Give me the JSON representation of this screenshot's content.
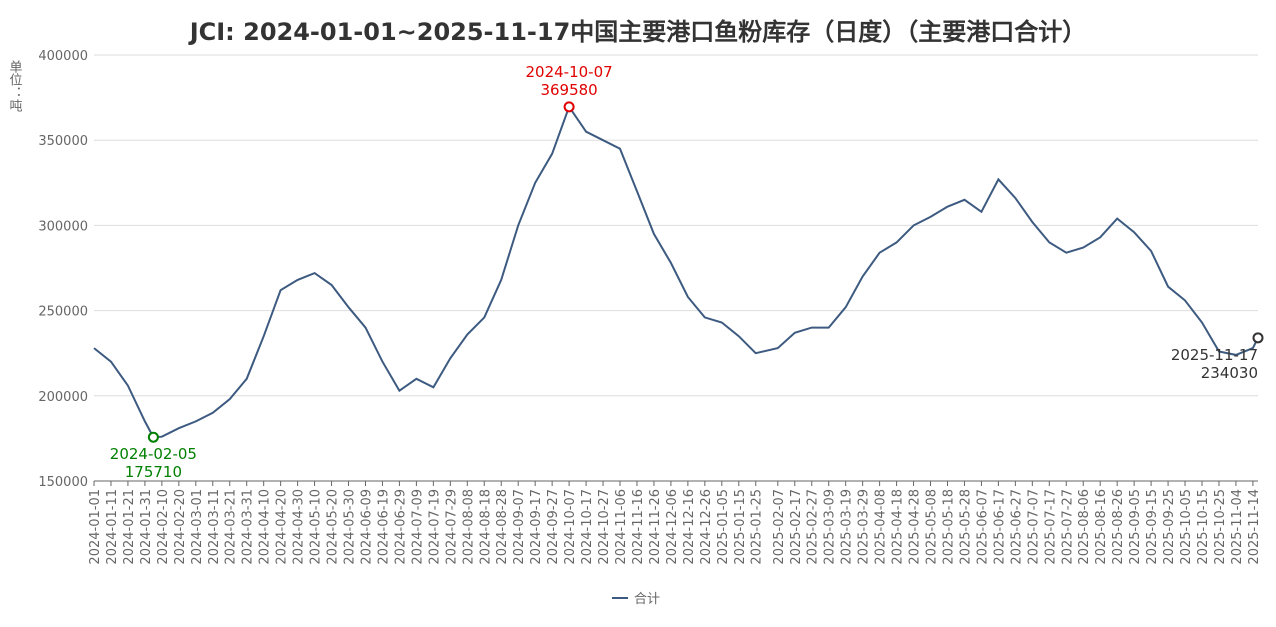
{
  "chart_data": {
    "type": "line",
    "title": "JCI: 2024-01-01~2025-11-17中国主要港口鱼粉库存（日度）（主要港口合计）",
    "y_label": "单位：吨",
    "x": [
      "2024-01-01",
      "2024-01-11",
      "2024-01-21",
      "2024-01-31",
      "2024-02-05",
      "2024-02-10",
      "2024-02-20",
      "2024-03-01",
      "2024-03-11",
      "2024-03-21",
      "2024-03-31",
      "2024-04-10",
      "2024-04-20",
      "2024-04-30",
      "2024-05-10",
      "2024-05-20",
      "2024-05-30",
      "2024-06-09",
      "2024-06-19",
      "2024-06-29",
      "2024-07-09",
      "2024-07-19",
      "2024-07-29",
      "2024-08-08",
      "2024-08-18",
      "2024-08-28",
      "2024-09-07",
      "2024-09-17",
      "2024-09-27",
      "2024-10-07",
      "2024-10-17",
      "2024-10-27",
      "2024-11-06",
      "2024-11-16",
      "2024-11-26",
      "2024-12-06",
      "2024-12-16",
      "2024-12-26",
      "2025-01-05",
      "2025-01-15",
      "2025-01-25",
      "2025-02-07",
      "2025-02-17",
      "2025-02-27",
      "2025-03-09",
      "2025-03-19",
      "2025-03-29",
      "2025-04-08",
      "2025-04-18",
      "2025-04-28",
      "2025-05-08",
      "2025-05-18",
      "2025-05-28",
      "2025-06-07",
      "2025-06-17",
      "2025-06-27",
      "2025-07-07",
      "2025-07-17",
      "2025-07-27",
      "2025-08-06",
      "2025-08-16",
      "2025-08-26",
      "2025-09-05",
      "2025-09-15",
      "2025-09-25",
      "2025-10-05",
      "2025-10-15",
      "2025-10-25",
      "2025-11-04",
      "2025-11-14",
      "2025-11-17"
    ],
    "series": [
      {
        "name": "合计",
        "color": "#3d5a80",
        "values": [
          228000,
          220000,
          206000,
          185000,
          175710,
          176000,
          181000,
          185000,
          190000,
          198000,
          210000,
          235000,
          262000,
          268000,
          272000,
          265000,
          252000,
          240000,
          220000,
          203000,
          210000,
          205000,
          222000,
          236000,
          246000,
          268000,
          300000,
          325000,
          342000,
          369580,
          355000,
          350000,
          345000,
          320000,
          295000,
          278000,
          258000,
          246000,
          243000,
          235000,
          225000,
          228000,
          237000,
          240000,
          240000,
          252000,
          270000,
          284000,
          290000,
          300000,
          305000,
          311000,
          315000,
          308000,
          327000,
          316000,
          302000,
          290000,
          284000,
          287000,
          293000,
          304000,
          296000,
          285000,
          264000,
          256000,
          243000,
          226000,
          224000,
          228000,
          234030
        ]
      }
    ],
    "xlim": [
      "2024-01-01",
      "2025-11-17"
    ],
    "xticks": [
      "2024-01-01",
      "2024-01-11",
      "2024-01-21",
      "2024-01-31",
      "2024-02-10",
      "2024-02-20",
      "2024-03-01",
      "2024-03-11",
      "2024-03-21",
      "2024-03-31",
      "2024-04-10",
      "2024-04-20",
      "2024-04-30",
      "2024-05-10",
      "2024-05-20",
      "2024-05-30",
      "2024-06-09",
      "2024-06-19",
      "2024-06-29",
      "2024-07-09",
      "2024-07-19",
      "2024-07-29",
      "2024-08-08",
      "2024-08-18",
      "2024-08-28",
      "2024-09-07",
      "2024-09-17",
      "2024-09-27",
      "2024-10-07",
      "2024-10-17",
      "2024-10-27",
      "2024-11-06",
      "2024-11-16",
      "2024-11-26",
      "2024-12-06",
      "2024-12-16",
      "2024-12-26",
      "2025-01-05",
      "2025-01-15",
      "2025-01-25",
      "2025-02-07",
      "2025-02-17",
      "2025-02-27",
      "2025-03-09",
      "2025-03-19",
      "2025-03-29",
      "2025-04-08",
      "2025-04-18",
      "2025-04-28",
      "2025-05-08",
      "2025-05-18",
      "2025-05-28",
      "2025-06-07",
      "2025-06-17",
      "2025-06-27",
      "2025-07-07",
      "2025-07-17",
      "2025-07-27",
      "2025-08-06",
      "2025-08-16",
      "2025-08-26",
      "2025-09-05",
      "2025-09-15",
      "2025-09-25",
      "2025-10-05",
      "2025-10-15",
      "2025-10-25",
      "2025-11-04",
      "2025-11-14"
    ],
    "ylim": [
      150000,
      400000
    ],
    "yticks": [
      150000,
      200000,
      250000,
      300000,
      350000,
      400000
    ],
    "grid": true,
    "markers": {
      "min": "#008000",
      "max": "#e00000",
      "last": "#333333"
    }
  }
}
